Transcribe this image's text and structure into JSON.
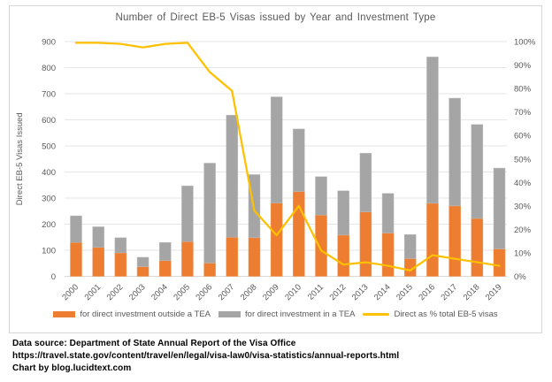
{
  "footer": {
    "line1": "Data source: Department of State Annual Report of the Visa Office",
    "line2": "https://travel.state.gov/content/travel/en/legal/visa-law0/visa-statistics/annual-reports.html",
    "line3": "Chart by blog.lucidtext.com"
  },
  "chart_data": {
    "type": "bar",
    "subtype": "stacked-bars-with-line-overlay",
    "title": "Number of Direct EB-5 Visas issued by Year and Investment Type",
    "ylabel": "Direct EB-5 Visas Issued",
    "xlabel": "",
    "grid": true,
    "legend_position": "bottom",
    "categories": [
      "2000",
      "2001",
      "2002",
      "2003",
      "2004",
      "2005",
      "2006",
      "2007",
      "2008",
      "2009",
      "2010",
      "2011",
      "2012",
      "2013",
      "2014",
      "2015",
      "2016",
      "2017",
      "2018",
      "2019"
    ],
    "series": [
      {
        "name": "for direct investment outside a TEA",
        "type": "bar",
        "stack": "direct-visas",
        "color": "#ED7D31",
        "values": [
          130,
          111,
          90,
          37,
          60,
          133,
          51,
          150,
          148,
          281,
          325,
          235,
          158,
          247,
          166,
          68,
          280,
          270,
          222,
          105
        ]
      },
      {
        "name": "for direct investment in a TEA",
        "type": "bar",
        "stack": "direct-visas",
        "color": "#A5A5A5",
        "values": [
          102,
          79,
          58,
          36,
          70,
          214,
          383,
          468,
          242,
          407,
          240,
          147,
          170,
          225,
          152,
          92,
          561,
          413,
          360,
          310
        ]
      },
      {
        "name": "Direct as % total EB-5 visas",
        "type": "line",
        "axis": "right",
        "color": "#FFC000",
        "values": [
          99.5,
          99.5,
          99,
          97.5,
          99,
          99.5,
          87,
          79,
          28,
          17.5,
          30,
          11,
          5,
          6,
          4.5,
          2.5,
          9,
          7.5,
          6,
          4.5
        ]
      }
    ],
    "left_axis": {
      "min": 0,
      "max": 900,
      "step": 100
    },
    "right_axis": {
      "min": 0,
      "max": 100,
      "step": 10,
      "format": "percent"
    },
    "colors": {
      "axis_text": "#595959",
      "gridline": "#e6e6e6",
      "axis_line": "#d9d9d9",
      "title_text": "#595959"
    }
  }
}
